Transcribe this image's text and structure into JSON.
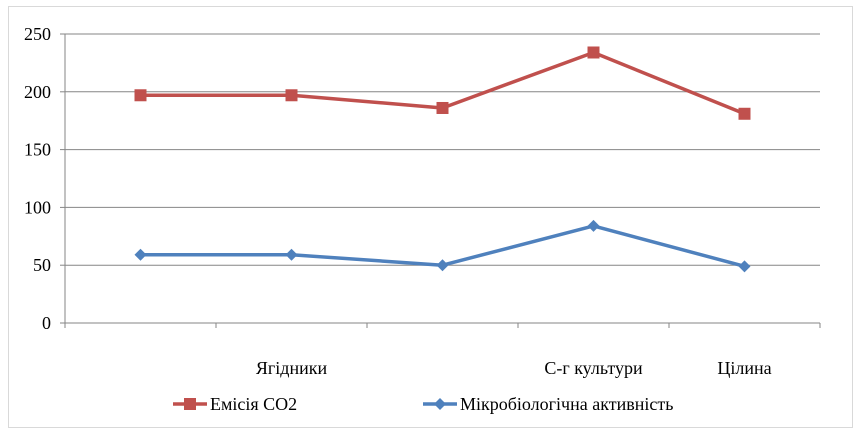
{
  "chart_data": {
    "type": "line",
    "categories": [
      "",
      "Ягідники",
      "",
      "С-г культури",
      "Цілина"
    ],
    "ylim": [
      0,
      250
    ],
    "yticks": [
      0,
      50,
      100,
      150,
      200,
      250
    ],
    "grid": true,
    "legend_position": "bottom",
    "series": [
      {
        "name": "Емісія CO2",
        "values": [
          197,
          197,
          186,
          234,
          181
        ],
        "color": "#c0504d",
        "marker": "square"
      },
      {
        "name": "Мікробіологічна активність",
        "values": [
          59,
          59,
          50,
          84,
          49
        ],
        "color": "#4f81bd",
        "marker": "diamond"
      }
    ]
  }
}
